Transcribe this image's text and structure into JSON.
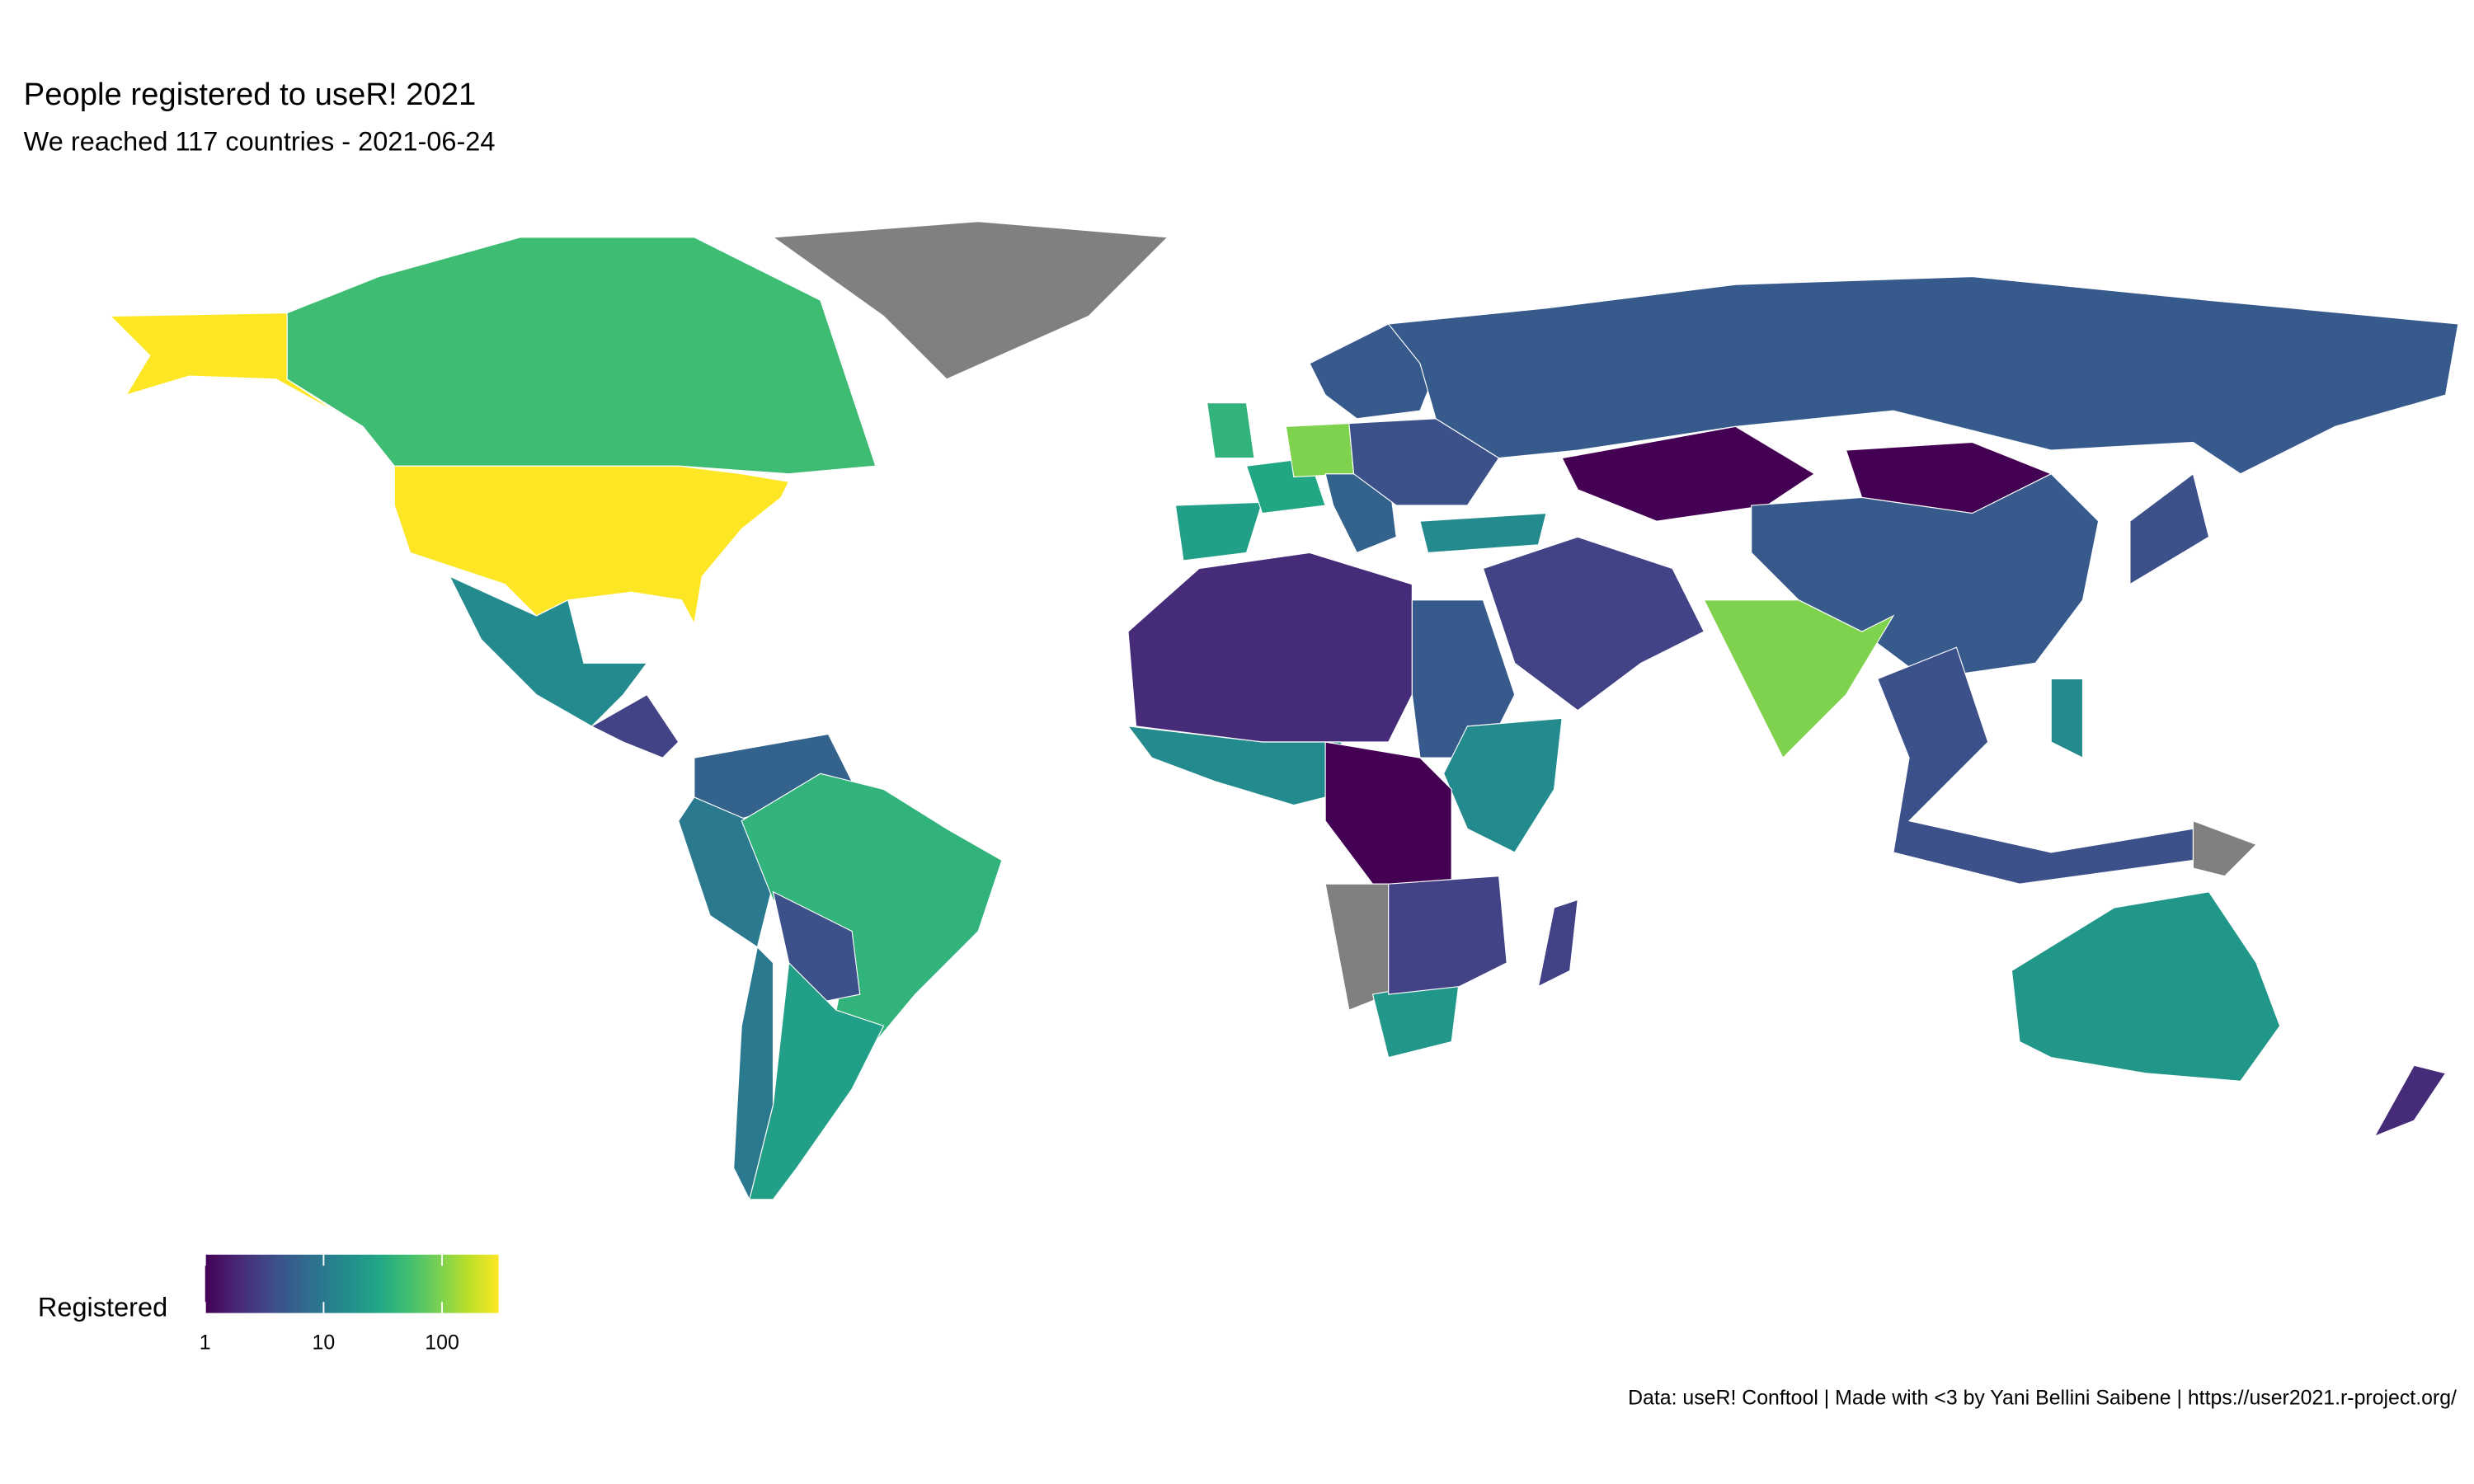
{
  "chart_data": {
    "type": "choropleth",
    "title": "People registered to useR! 2021",
    "subtitle": "We reached 117 countries - 2021-06-24",
    "caption": "Data: useR! Conftool | Made with <3 by Yani Bellini Saibene | https://user2021.r-project.org/",
    "legend_title": "Registered",
    "colorscale": "viridis",
    "log_scale": true,
    "na_color": "#808080",
    "lim": [
      1,
      300
    ],
    "ticks": [
      1,
      10,
      100
    ],
    "values": [
      300,
      50,
      null,
      15,
      3,
      6,
      10,
      40,
      4,
      25,
      10,
      25,
      30,
      40,
      100,
      6,
      5,
      4,
      15,
      5,
      1,
      1,
      5,
      4,
      100,
      3,
      2,
      5,
      15,
      15,
      1,
      null,
      20,
      3,
      3,
      4,
      15,
      null,
      20,
      2
    ]
  }
}
